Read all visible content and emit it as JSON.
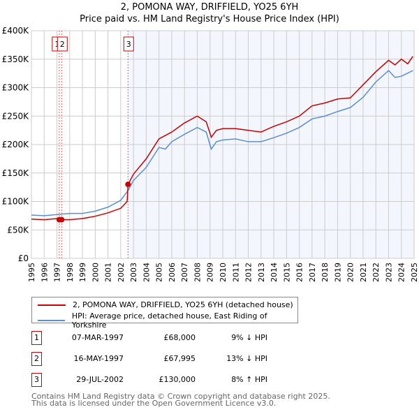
{
  "chart_data": {
    "type": "line",
    "title": "2, POMONA WAY, DRIFFIELD, YO25 6YH",
    "subtitle": "Price paid vs. HM Land Registry's House Price Index (HPI)",
    "xlim": [
      1995,
      2025
    ],
    "ylim": [
      0,
      400000
    ],
    "y_ticks": [
      {
        "v": 0,
        "label": "£0"
      },
      {
        "v": 50000,
        "label": "£50K"
      },
      {
        "v": 100000,
        "label": "£100K"
      },
      {
        "v": 150000,
        "label": "£150K"
      },
      {
        "v": 200000,
        "label": "£200K"
      },
      {
        "v": 250000,
        "label": "£250K"
      },
      {
        "v": 300000,
        "label": "£300K"
      },
      {
        "v": 350000,
        "label": "£350K"
      },
      {
        "v": 400000,
        "label": "£400K"
      }
    ],
    "x_ticks": [
      "1995",
      "1996",
      "1997",
      "1998",
      "1999",
      "2000",
      "2001",
      "2002",
      "2003",
      "2004",
      "2005",
      "2006",
      "2007",
      "2008",
      "2009",
      "2010",
      "2011",
      "2012",
      "2013",
      "2014",
      "2015",
      "2016",
      "2017",
      "2018",
      "2019",
      "2020",
      "2021",
      "2022",
      "2023",
      "2024",
      "2025"
    ],
    "grid": true,
    "shaded_from": 2002.57,
    "series": [
      {
        "name": "2, POMONA WAY, DRIFFIELD, YO25 6YH (detached house)",
        "color": "#cc0000",
        "x": [
          1995,
          1996,
          1997,
          1997.4,
          1998,
          1999,
          2000,
          2001,
          2002,
          2002.5,
          2002.58,
          2003,
          2004,
          2005,
          2006,
          2007,
          2008,
          2008.7,
          2009.1,
          2009.5,
          2010,
          2011,
          2012,
          2013,
          2014,
          2015,
          2016,
          2017,
          2018,
          2019,
          2020,
          2021,
          2022,
          2023,
          2023.5,
          2024,
          2024.5,
          2024.9
        ],
        "y": [
          69000,
          68000,
          70000,
          68000,
          68000,
          70000,
          74000,
          80000,
          88000,
          100000,
          130000,
          148000,
          175000,
          210000,
          222000,
          238000,
          250000,
          240000,
          213000,
          225000,
          228000,
          228000,
          225000,
          222000,
          232000,
          240000,
          250000,
          268000,
          273000,
          280000,
          282000,
          305000,
          328000,
          348000,
          340000,
          350000,
          342000,
          355000
        ]
      },
      {
        "name": "HPI: Average price, detached house, East Riding of Yorkshire",
        "color": "#5b8fd4",
        "x": [
          1995,
          1996,
          1997,
          1998,
          1999,
          2000,
          2001,
          2002,
          2002.6,
          2003,
          2004,
          2005,
          2005.5,
          2006,
          2007,
          2008,
          2008.7,
          2009.1,
          2009.5,
          2010,
          2011,
          2012,
          2013,
          2014,
          2015,
          2016,
          2017,
          2018,
          2019,
          2020,
          2021,
          2022,
          2023,
          2023.5,
          2024,
          2024.9
        ],
        "y": [
          76000,
          75000,
          77000,
          79000,
          79000,
          83000,
          90000,
          102000,
          120000,
          137000,
          160000,
          195000,
          192000,
          205000,
          218000,
          230000,
          222000,
          192000,
          205000,
          208000,
          210000,
          205000,
          205000,
          212000,
          220000,
          230000,
          245000,
          250000,
          258000,
          265000,
          283000,
          310000,
          330000,
          318000,
          320000,
          330000
        ]
      }
    ],
    "sales": [
      {
        "n": "1",
        "x": 1997.18,
        "y": 68000,
        "date": "07-MAR-1997",
        "price": "£68,000",
        "hpi": "9% ↓ HPI"
      },
      {
        "n": "2",
        "x": 1997.37,
        "y": 67995,
        "date": "16-MAY-1997",
        "price": "£67,995",
        "hpi": "13% ↓ HPI"
      },
      {
        "n": "3",
        "x": 2002.57,
        "y": 130000,
        "date": "29-JUL-2002",
        "price": "£130,000",
        "hpi": "8% ↑ HPI"
      }
    ]
  },
  "footer": {
    "line1": "Contains HM Land Registry data © Crown copyright and database right 2025.",
    "line2": "This data is licensed under the Open Government Licence v3.0."
  }
}
